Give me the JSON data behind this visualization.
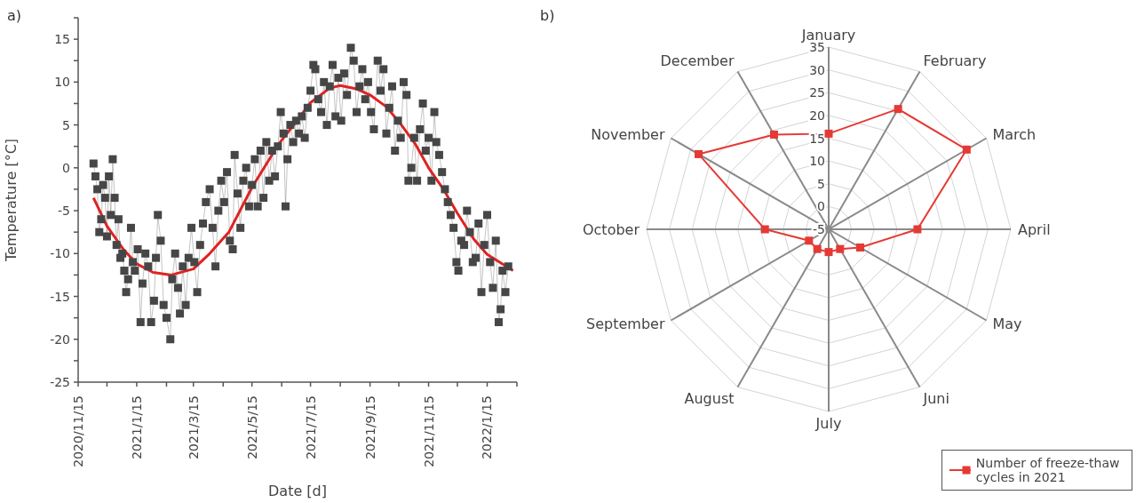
{
  "chart_data": [
    {
      "type": "line",
      "annotations": [
        "a)"
      ],
      "xlabel": "Date [d]",
      "ylabel": "Temperature [°C]",
      "xlim": [
        "2020-11-15",
        "2022-02-15"
      ],
      "xticks": [
        {
          "value": "2020-11-15",
          "label": "2020/11/15"
        },
        {
          "value": "2020-12-15",
          "label": null
        },
        {
          "value": "2021-01-15",
          "label": "2021/1/15"
        },
        {
          "value": "2021-02-15",
          "label": null
        },
        {
          "value": "2021-03-15",
          "label": "2021/3/15"
        },
        {
          "value": "2021-04-15",
          "label": null
        },
        {
          "value": "2021-05-15",
          "label": "2021/5/15"
        },
        {
          "value": "2021-06-15",
          "label": null
        },
        {
          "value": "2021-07-15",
          "label": "2021/7/15"
        },
        {
          "value": "2021-08-15",
          "label": null
        },
        {
          "value": "2021-09-15",
          "label": "2021/9/15"
        },
        {
          "value": "2021-10-15",
          "label": null
        },
        {
          "value": "2021-11-15",
          "label": "2021/11/15"
        },
        {
          "value": "2021-12-15",
          "label": null
        },
        {
          "value": "2022-01-15",
          "label": "2022/1/15"
        },
        {
          "value": "2022-02-15",
          "label": null
        }
      ],
      "ylim": [
        -25,
        17.5
      ],
      "yticks": [
        -25,
        {
          "value": -22.5,
          "label": null
        },
        -20,
        {
          "value": -17.5,
          "label": null
        },
        -15,
        {
          "value": -12.5,
          "label": null
        },
        -10,
        {
          "value": -7.5,
          "label": null
        },
        -5,
        {
          "value": -2.5,
          "label": null
        },
        0,
        {
          "value": 2.5,
          "label": null
        },
        5,
        {
          "value": 7.5,
          "label": null
        },
        10,
        {
          "value": 12.5,
          "label": null
        },
        15,
        {
          "value": 17.5,
          "label": null
        }
      ],
      "series": [
        {
          "type": "line",
          "color": "#464646",
          "marker": "square",
          "x": [
            "2020-12-01",
            "2020-12-03",
            "2020-12-05",
            "2020-12-07",
            "2020-12-09",
            "2020-12-11",
            "2020-12-13",
            "2020-12-15",
            "2020-12-17",
            "2020-12-19",
            "2020-12-21",
            "2020-12-23",
            "2020-12-25",
            "2020-12-27",
            "2020-12-29",
            "2020-12-31",
            "2021-01-02",
            "2021-01-04",
            "2021-01-06",
            "2021-01-09",
            "2021-01-11",
            "2021-01-13",
            "2021-01-16",
            "2021-01-19",
            "2021-01-21",
            "2021-01-24",
            "2021-01-27",
            "2021-01-30",
            "2021-02-02",
            "2021-02-04",
            "2021-02-06",
            "2021-02-09",
            "2021-02-12",
            "2021-02-15",
            "2021-02-19",
            "2021-02-21",
            "2021-02-24",
            "2021-02-27",
            "2021-03-01",
            "2021-03-04",
            "2021-03-07",
            "2021-03-10",
            "2021-03-13",
            "2021-03-16",
            "2021-03-19",
            "2021-03-22",
            "2021-03-25",
            "2021-03-28",
            "2021-04-01",
            "2021-04-04",
            "2021-04-07",
            "2021-04-10",
            "2021-04-13",
            "2021-04-16",
            "2021-04-19",
            "2021-04-22",
            "2021-04-25",
            "2021-04-27",
            "2021-04-30",
            "2021-05-03",
            "2021-05-06",
            "2021-05-09",
            "2021-05-12",
            "2021-05-15",
            "2021-05-18",
            "2021-05-21",
            "2021-05-24",
            "2021-05-27",
            "2021-05-30",
            "2021-06-02",
            "2021-06-05",
            "2021-06-08",
            "2021-06-11",
            "2021-06-14",
            "2021-06-17",
            "2021-06-19",
            "2021-06-21",
            "2021-06-24",
            "2021-06-27",
            "2021-06-30",
            "2021-07-03",
            "2021-07-06",
            "2021-07-09",
            "2021-07-12",
            "2021-07-15",
            "2021-07-18",
            "2021-07-20",
            "2021-07-23",
            "2021-07-26",
            "2021-07-29",
            "2021-08-01",
            "2021-08-04",
            "2021-08-07",
            "2021-08-10",
            "2021-08-13",
            "2021-08-16",
            "2021-08-19",
            "2021-08-22",
            "2021-08-26",
            "2021-08-29",
            "2021-09-01",
            "2021-09-04",
            "2021-09-07",
            "2021-09-10",
            "2021-09-13",
            "2021-09-16",
            "2021-09-19",
            "2021-09-23",
            "2021-09-26",
            "2021-09-29",
            "2021-10-02",
            "2021-10-05",
            "2021-10-08",
            "2021-10-11",
            "2021-10-14",
            "2021-10-17",
            "2021-10-20",
            "2021-10-23",
            "2021-10-25",
            "2021-10-28",
            "2021-10-31",
            "2021-11-03",
            "2021-11-06",
            "2021-11-09",
            "2021-11-12",
            "2021-11-15",
            "2021-11-18",
            "2021-11-21",
            "2021-11-23",
            "2021-11-26",
            "2021-11-29",
            "2021-12-02",
            "2021-12-05",
            "2021-12-08",
            "2021-12-11",
            "2021-12-14",
            "2021-12-16",
            "2021-12-19",
            "2021-12-22",
            "2021-12-25",
            "2021-12-28",
            "2021-12-31",
            "2022-01-03",
            "2022-01-06",
            "2022-01-09",
            "2022-01-12",
            "2022-01-15",
            "2022-01-18",
            "2022-01-21",
            "2022-01-24",
            "2022-01-27",
            "2022-01-29",
            "2022-01-31",
            "2022-02-03",
            "2022-02-06"
          ],
          "values": [
            0.5,
            -1,
            -2.5,
            -7.5,
            -6,
            -2,
            -3.5,
            -8,
            -1,
            -5.5,
            1,
            -3.5,
            -9,
            -6,
            -10.5,
            -10,
            -12,
            -14.5,
            -13,
            -7,
            -11,
            -12,
            -9.5,
            -18,
            -13.5,
            -10,
            -11.5,
            -18,
            -15.5,
            -10.5,
            -5.5,
            -8.5,
            -16,
            -17.5,
            -20,
            -13,
            -10,
            -14,
            -17,
            -11.5,
            -16,
            -10.5,
            -7,
            -11,
            -14.5,
            -9,
            -6.5,
            -4,
            -2.5,
            -7,
            -11.5,
            -5,
            -1.5,
            -4,
            -0.5,
            -8.5,
            -9.5,
            1.5,
            -3,
            -7,
            -1.5,
            0,
            -4.5,
            -2,
            1,
            -4.5,
            2,
            -3.5,
            3,
            -1.5,
            2,
            -1,
            2.5,
            6.5,
            4,
            -4.5,
            1,
            5,
            3,
            5.5,
            4,
            6,
            3.5,
            7,
            9,
            12,
            11.5,
            8,
            6.5,
            10,
            5,
            9.5,
            12,
            6,
            10.5,
            5.5,
            11,
            8.5,
            14,
            12.5,
            6.5,
            9.5,
            11.5,
            8,
            10,
            6.5,
            4.5,
            12.5,
            9,
            11.5,
            4,
            7,
            9.5,
            2,
            5.5,
            3.5,
            10,
            8.5,
            -1.5,
            0,
            3.5,
            -1.5,
            4.5,
            7.5,
            2,
            3.5,
            -1.5,
            6.5,
            3,
            1.5,
            -0.5,
            -2.5,
            -4,
            -5.5,
            -7,
            -11,
            -12,
            -8.5,
            -9,
            -5,
            -7.5,
            -11,
            -10.5,
            -6.5,
            -14.5,
            -9,
            -5.5,
            -11,
            -14,
            -8.5,
            -18,
            -16.5,
            -12,
            -14.5,
            -11.5
          ]
        },
        {
          "type": "line",
          "color": "#e02222",
          "marker": "none",
          "x": [
            "2020-12-01",
            "2020-12-15",
            "2021-01-01",
            "2021-01-15",
            "2021-02-01",
            "2021-02-20",
            "2021-03-15",
            "2021-04-01",
            "2021-04-21",
            "2021-05-15",
            "2021-06-12",
            "2021-07-01",
            "2021-07-15",
            "2021-08-04",
            "2021-08-15",
            "2021-09-01",
            "2021-09-15",
            "2021-10-01",
            "2021-10-15",
            "2021-11-01",
            "2021-11-15",
            "2021-12-01",
            "2021-12-15",
            "2022-01-01",
            "2022-01-15",
            "2022-02-11"
          ],
          "values": [
            -3.5,
            -6.8,
            -9.5,
            -11.2,
            -12.2,
            -12.5,
            -11.8,
            -10,
            -7.5,
            -2.3,
            2.8,
            5.5,
            7.6,
            9.3,
            9.6,
            9.2,
            8.5,
            7.2,
            5.4,
            2.8,
            0,
            -2.6,
            -5.3,
            -8.3,
            -10.1,
            -12
          ]
        }
      ]
    },
    {
      "type": "radar",
      "annotations": [
        "b)"
      ],
      "categories": [
        "January",
        "February",
        "March",
        "April",
        "May",
        "Juni",
        "July",
        "August",
        "September",
        "October",
        "November",
        "December"
      ],
      "ylim": [
        -5,
        35
      ],
      "yticks": [
        -5,
        0,
        5,
        10,
        15,
        20,
        25,
        30,
        35
      ],
      "grid": true,
      "legend": "bottom right",
      "series": [
        {
          "name": "Number of freeze-thaw cycles in 2021",
          "color": "#e53935",
          "marker": "square",
          "values": [
            16,
            25.5,
            30,
            14.5,
            3,
            0,
            0,
            0,
            0,
            9,
            28,
            19
          ]
        }
      ]
    }
  ]
}
